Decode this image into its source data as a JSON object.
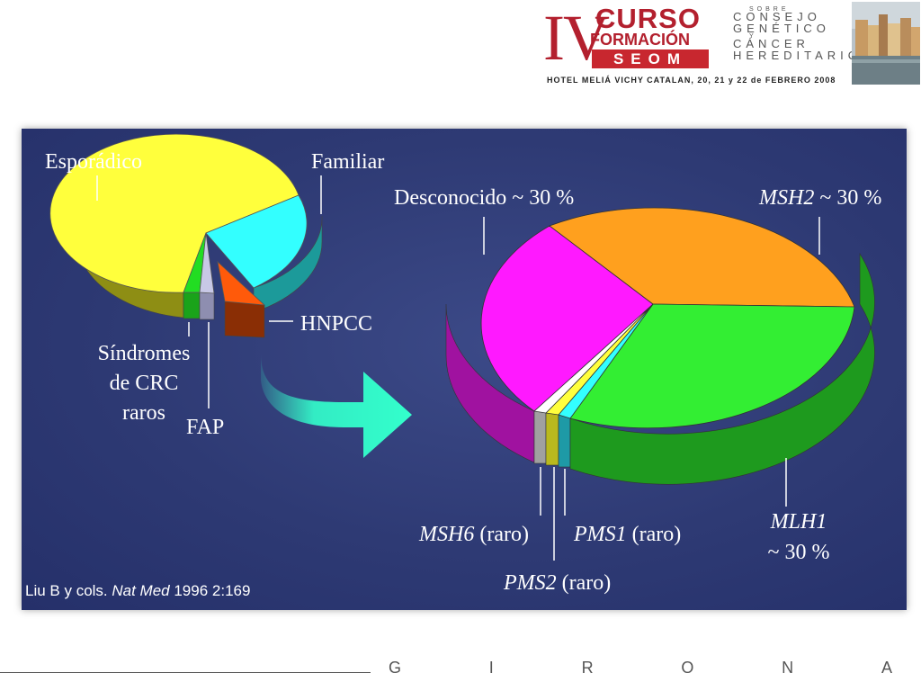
{
  "header": {
    "roman": "IV",
    "line1": "CURSO",
    "line2": "FORMACIÓN",
    "line3": "SEOM",
    "sub": [
      "SOBRE",
      "CONSEJO",
      "GENÉTICO",
      "Y",
      "CÁNCER",
      "HEREDITARIO"
    ],
    "venue": "HOTEL MELIÁ VICHY CATALAN, 20, 21 y 22 de FEBRERO 2008"
  },
  "citation": {
    "authors": "Liu B y cols. ",
    "journal": "Nat Med",
    "ref": " 1996 2:169"
  },
  "footer_letters": [
    "G",
    "I",
    "R",
    "O",
    "N",
    "A"
  ],
  "colors": {
    "background": "#2e3a74",
    "esporadico": "#ffff3c",
    "familiar": "#33ffff",
    "hnpcc": "#ff5a0a",
    "sindromes": "#22dd22",
    "fap": "#c8c8e6",
    "desconocido": "#ff19ff",
    "msh2": "#ffa01e",
    "mlh1": "#33ee33",
    "arrow": "#33ffcc"
  },
  "chart_data": [
    {
      "type": "pie",
      "title": "",
      "labels": [
        "Esporádico",
        "Familiar",
        "HNPCC",
        "Síndromes de CRC raros",
        "FAP"
      ],
      "label_lines": {
        "esporadico": "Esporádico",
        "familiar": "Familiar",
        "hnpcc": "HNPCC",
        "sindromes": [
          "Síndromes",
          "de CRC",
          "raros"
        ],
        "fap": "FAP"
      },
      "values": [
        75,
        15,
        5,
        3,
        2
      ],
      "units": "%",
      "three_d": true,
      "exploded": [
        "HNPCC"
      ]
    },
    {
      "type": "pie",
      "title": "",
      "labels": [
        "Desconocido ~ 30 %",
        "MSH2 ~ 30 %",
        "MLH1 ~ 30 %",
        "PMS1 (raro)",
        "PMS2 (raro)",
        "MSH6 (raro)"
      ],
      "label_parts": {
        "desconocido": "Desconocido ~ 30 %",
        "msh2_gene": "MSH2",
        "msh2_pct": " ~ 30 %",
        "mlh1_gene": "MLH1",
        "mlh1_pct": "~ 30 %",
        "pms1_gene": "PMS1",
        "pms2_gene": "PMS2",
        "msh6_gene": "MSH6",
        "raro": " (raro)"
      },
      "values": [
        31,
        31,
        33,
        1,
        1.5,
        2.5
      ],
      "units": "%",
      "three_d": true
    }
  ]
}
